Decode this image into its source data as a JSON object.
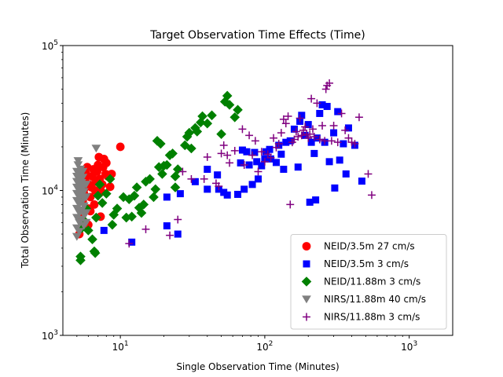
{
  "chart_data": {
    "type": "scatter",
    "title": "Target Observation Time Effects (Time)",
    "xlabel": "Single Observation Time (Minutes)",
    "ylabel": "Total Observation Time (Minutes)",
    "xscale": "log",
    "yscale": "log",
    "xlim": [
      4,
      2000
    ],
    "ylim": [
      1000,
      100000
    ],
    "x_ticks": [
      {
        "value": 10,
        "base": "10",
        "exp": "1"
      },
      {
        "value": 100,
        "base": "10",
        "exp": "2"
      },
      {
        "value": 1000,
        "base": "10",
        "exp": "3"
      }
    ],
    "y_ticks": [
      {
        "value": 1000,
        "base": "10",
        "exp": "3"
      },
      {
        "value": 10000,
        "base": "10",
        "exp": "4"
      },
      {
        "value": 100000,
        "base": "10",
        "exp": "5"
      }
    ],
    "grid": false,
    "legend_position": "lower-right",
    "series": [
      {
        "name": "NEID/3.5m 27 cm/s",
        "color": "#ff0000",
        "marker": "circle",
        "points": [
          [
            5.2,
            5000
          ],
          [
            5.4,
            6500
          ],
          [
            5.5,
            8500
          ],
          [
            5.6,
            10200
          ],
          [
            5.7,
            11800
          ],
          [
            5.8,
            13000
          ],
          [
            5.9,
            14500
          ],
          [
            5.5,
            7200
          ],
          [
            5.6,
            9500
          ],
          [
            6.0,
            7500
          ],
          [
            6.2,
            9000
          ],
          [
            6.3,
            10500
          ],
          [
            6.4,
            12500
          ],
          [
            6.5,
            14000
          ],
          [
            6.1,
            11000
          ],
          [
            6.6,
            8000
          ],
          [
            6.7,
            10000
          ],
          [
            6.8,
            11500
          ],
          [
            6.9,
            13500
          ],
          [
            7.0,
            15000
          ],
          [
            7.1,
            17000
          ],
          [
            7.2,
            12000
          ],
          [
            7.3,
            6600
          ],
          [
            7.4,
            9800
          ],
          [
            7.5,
            11000
          ],
          [
            7.6,
            14500
          ],
          [
            7.7,
            16500
          ],
          [
            7.9,
            13000
          ],
          [
            8.0,
            15500
          ],
          [
            8.2,
            12500
          ],
          [
            8.5,
            10600
          ],
          [
            8.7,
            13000
          ],
          [
            10.0,
            20000
          ],
          [
            6.0,
            5800
          ],
          [
            6.2,
            7200
          ]
        ]
      },
      {
        "name": "NEID/3.5m 3 cm/s",
        "color": "#0000ff",
        "marker": "square",
        "points": [
          [
            7.7,
            5300
          ],
          [
            12,
            4400
          ],
          [
            21,
            5700
          ],
          [
            21,
            9000
          ],
          [
            25,
            5000
          ],
          [
            26,
            9500
          ],
          [
            33,
            11500
          ],
          [
            40,
            10200
          ],
          [
            40,
            14000
          ],
          [
            47,
            12800
          ],
          [
            48,
            10200
          ],
          [
            52,
            9700
          ],
          [
            55,
            9300
          ],
          [
            65,
            9400
          ],
          [
            68,
            15500
          ],
          [
            70,
            19000
          ],
          [
            72,
            10200
          ],
          [
            75,
            18500
          ],
          [
            78,
            15000
          ],
          [
            82,
            11000
          ],
          [
            85,
            18300
          ],
          [
            88,
            15800
          ],
          [
            90,
            12000
          ],
          [
            95,
            14800
          ],
          [
            100,
            16500
          ],
          [
            102,
            18500
          ],
          [
            108,
            19200
          ],
          [
            110,
            16500
          ],
          [
            120,
            15600
          ],
          [
            125,
            20500
          ],
          [
            130,
            17800
          ],
          [
            135,
            14000
          ],
          [
            140,
            21500
          ],
          [
            150,
            22000
          ],
          [
            160,
            26500
          ],
          [
            170,
            14500
          ],
          [
            175,
            30000
          ],
          [
            180,
            33000
          ],
          [
            190,
            24000
          ],
          [
            200,
            28500
          ],
          [
            205,
            8300
          ],
          [
            210,
            21500
          ],
          [
            220,
            18000
          ],
          [
            225,
            8600
          ],
          [
            230,
            23000
          ],
          [
            240,
            34000
          ],
          [
            250,
            39000
          ],
          [
            260,
            21500
          ],
          [
            270,
            38000
          ],
          [
            280,
            15800
          ],
          [
            300,
            25000
          ],
          [
            305,
            10400
          ],
          [
            320,
            35000
          ],
          [
            330,
            16200
          ],
          [
            350,
            21000
          ],
          [
            365,
            13000
          ],
          [
            380,
            27000
          ],
          [
            420,
            20500
          ],
          [
            470,
            11600
          ]
        ]
      },
      {
        "name": "NEID/11.88m 3 cm/s",
        "color": "#008000",
        "marker": "diamond",
        "points": [
          [
            5.3,
            3300
          ],
          [
            5.3,
            3500
          ],
          [
            5.4,
            5500
          ],
          [
            5.6,
            6200
          ],
          [
            5.8,
            7500
          ],
          [
            6.0,
            5300
          ],
          [
            6.4,
            4600
          ],
          [
            6.6,
            3800
          ],
          [
            6.7,
            3700
          ],
          [
            6.8,
            6500
          ],
          [
            7.0,
            9200
          ],
          [
            7.2,
            11000
          ],
          [
            7.5,
            8200
          ],
          [
            8.0,
            9500
          ],
          [
            8.5,
            12000
          ],
          [
            8.8,
            5800
          ],
          [
            9.0,
            6800
          ],
          [
            9.5,
            7500
          ],
          [
            10.5,
            9000
          ],
          [
            11,
            6500
          ],
          [
            11.5,
            8700
          ],
          [
            12,
            6600
          ],
          [
            12.5,
            9200
          ],
          [
            13,
            10500
          ],
          [
            13.5,
            7600
          ],
          [
            14,
            7000
          ],
          [
            14.5,
            8000
          ],
          [
            15,
            11500
          ],
          [
            16,
            12000
          ],
          [
            17,
            9000
          ],
          [
            17.5,
            10200
          ],
          [
            18,
            22000
          ],
          [
            18.5,
            14500
          ],
          [
            19,
            21000
          ],
          [
            19.5,
            13000
          ],
          [
            20,
            14800
          ],
          [
            21,
            15000
          ],
          [
            22,
            17500
          ],
          [
            23,
            18000
          ],
          [
            24,
            12500
          ],
          [
            25,
            14000
          ],
          [
            28,
            20500
          ],
          [
            29,
            23500
          ],
          [
            30,
            25000
          ],
          [
            31,
            19500
          ],
          [
            33,
            27000
          ],
          [
            34,
            25500
          ],
          [
            36,
            29500
          ],
          [
            37,
            32500
          ],
          [
            40,
            29000
          ],
          [
            43,
            33000
          ],
          [
            50,
            24500
          ],
          [
            53,
            41000
          ],
          [
            55,
            45000
          ],
          [
            57,
            39000
          ],
          [
            62,
            32000
          ],
          [
            65,
            36000
          ],
          [
            24,
            10500
          ]
        ]
      },
      {
        "name": "NIRS/11.88m 40 cm/s",
        "color": "#808080",
        "marker": "triangle-down",
        "points": [
          [
            5.0,
            4800
          ],
          [
            5.0,
            5500
          ],
          [
            5.0,
            6500
          ],
          [
            5.0,
            7500
          ],
          [
            5.0,
            8500
          ],
          [
            5.0,
            9500
          ],
          [
            5.0,
            10500
          ],
          [
            5.0,
            11500
          ],
          [
            5.0,
            12500
          ],
          [
            5.0,
            13500
          ],
          [
            5.1,
            15000
          ],
          [
            5.1,
            16000
          ],
          [
            5.2,
            5200
          ],
          [
            5.2,
            6000
          ],
          [
            5.2,
            7000
          ],
          [
            5.2,
            8000
          ],
          [
            5.2,
            9000
          ],
          [
            5.2,
            10000
          ],
          [
            5.2,
            11000
          ],
          [
            5.2,
            12000
          ],
          [
            5.3,
            13000
          ],
          [
            5.3,
            14000
          ],
          [
            5.4,
            6300
          ],
          [
            5.4,
            7300
          ],
          [
            5.4,
            8300
          ],
          [
            5.4,
            9300
          ],
          [
            5.4,
            10300
          ],
          [
            5.4,
            11300
          ],
          [
            5.5,
            12300
          ],
          [
            5.5,
            13500
          ],
          [
            5.6,
            5700
          ],
          [
            5.6,
            6800
          ],
          [
            5.6,
            7800
          ],
          [
            5.6,
            8800
          ],
          [
            5.6,
            9800
          ],
          [
            5.6,
            10800
          ],
          [
            5.8,
            6000
          ],
          [
            5.8,
            7000
          ],
          [
            5.8,
            9000
          ],
          [
            5.8,
            11000
          ],
          [
            6.8,
            19500
          ]
        ]
      },
      {
        "name": "NIRS/11.88m 3 cm/s",
        "color": "#800080",
        "marker": "plus",
        "points": [
          [
            11.5,
            4300
          ],
          [
            15,
            5400
          ],
          [
            22,
            4900
          ],
          [
            25,
            6300
          ],
          [
            27,
            13500
          ],
          [
            31,
            12000
          ],
          [
            38,
            12000
          ],
          [
            40,
            17000
          ],
          [
            46,
            11200
          ],
          [
            48,
            10700
          ],
          [
            50,
            18000
          ],
          [
            52,
            20500
          ],
          [
            55,
            17500
          ],
          [
            57,
            15500
          ],
          [
            62,
            18800
          ],
          [
            70,
            26500
          ],
          [
            72,
            15000
          ],
          [
            78,
            24000
          ],
          [
            82,
            17500
          ],
          [
            86,
            22000
          ],
          [
            90,
            13500
          ],
          [
            95,
            18500
          ],
          [
            100,
            15800
          ],
          [
            105,
            17800
          ],
          [
            110,
            16800
          ],
          [
            115,
            23000
          ],
          [
            120,
            19800
          ],
          [
            125,
            21000
          ],
          [
            130,
            25000
          ],
          [
            135,
            31000
          ],
          [
            140,
            29000
          ],
          [
            145,
            32500
          ],
          [
            150,
            8000
          ],
          [
            155,
            21500
          ],
          [
            160,
            22500
          ],
          [
            165,
            25500
          ],
          [
            170,
            23500
          ],
          [
            175,
            31500
          ],
          [
            180,
            24000
          ],
          [
            185,
            26000
          ],
          [
            190,
            27500
          ],
          [
            195,
            24500
          ],
          [
            200,
            23000
          ],
          [
            205,
            24500
          ],
          [
            210,
            43000
          ],
          [
            215,
            26500
          ],
          [
            220,
            23500
          ],
          [
            230,
            40000
          ],
          [
            240,
            22500
          ],
          [
            250,
            28000
          ],
          [
            260,
            22000
          ],
          [
            265,
            50000
          ],
          [
            270,
            53000
          ],
          [
            280,
            55000
          ],
          [
            290,
            22000
          ],
          [
            300,
            28000
          ],
          [
            320,
            21500
          ],
          [
            340,
            34000
          ],
          [
            360,
            26000
          ],
          [
            380,
            23000
          ],
          [
            400,
            21500
          ],
          [
            420,
            21000
          ],
          [
            450,
            32000
          ],
          [
            520,
            13000
          ],
          [
            550,
            9300
          ]
        ]
      }
    ]
  }
}
